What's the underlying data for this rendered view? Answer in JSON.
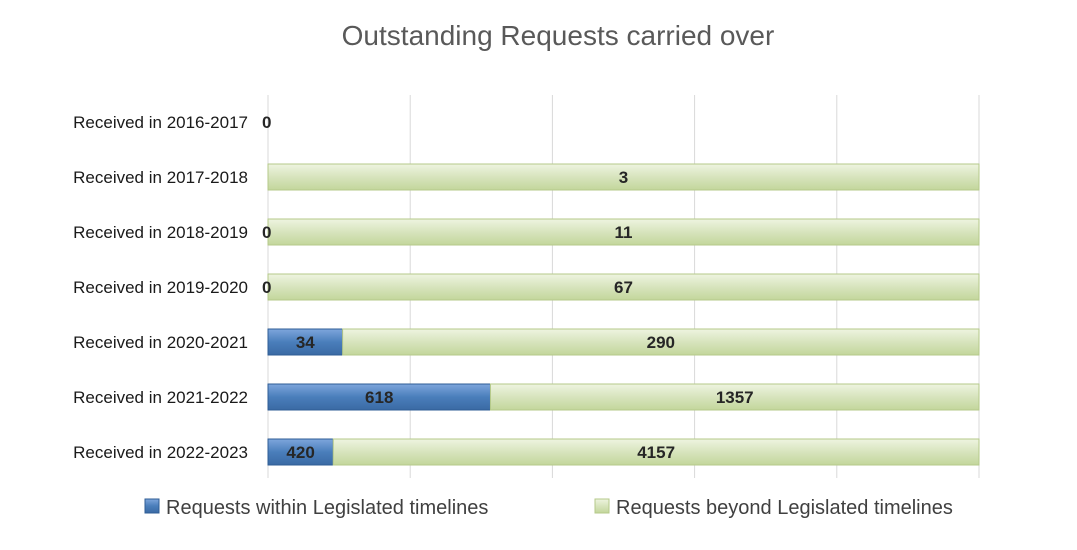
{
  "chart_data": {
    "type": "bar",
    "orientation": "horizontal",
    "stacking": "percent",
    "title": "Outstanding Requests carried over",
    "categories": [
      "Received in 2016-2017",
      "Received in 2017-2018",
      "Received in 2018-2019",
      "Received in 2019-2020",
      "Received in 2020-2021",
      "Received in 2021-2022",
      "Received in 2022-2023"
    ],
    "series": [
      {
        "name": "Requests within Legislated timelines",
        "values": [
          0,
          null,
          0,
          0,
          34,
          618,
          420
        ],
        "color": "#4a7ebb"
      },
      {
        "name": "Requests beyond Legislated timelines",
        "values": [
          null,
          3,
          11,
          67,
          290,
          1357,
          4157
        ],
        "color": "#d7e4bd"
      }
    ],
    "xlim": [
      0,
      100
    ],
    "grid": true,
    "legend_position": "bottom",
    "data_labels": true
  }
}
